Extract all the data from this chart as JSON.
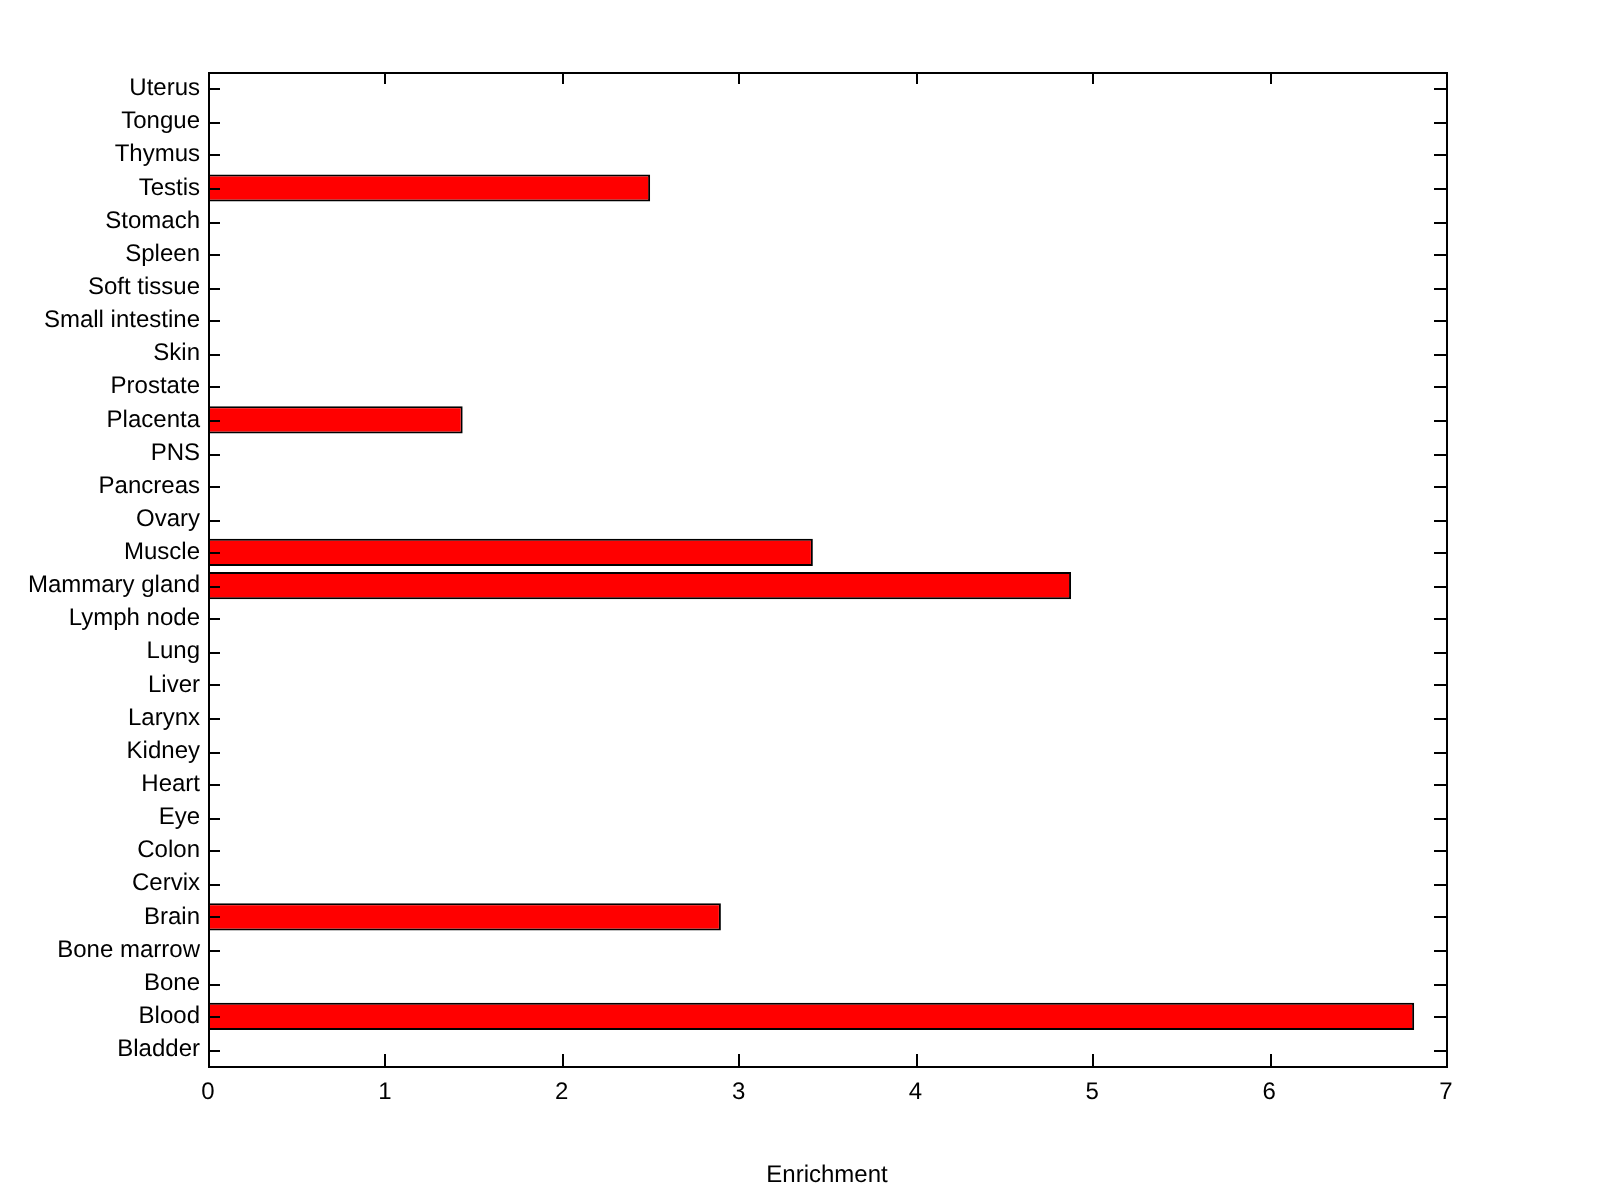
{
  "chart_data": {
    "type": "bar",
    "orientation": "horizontal",
    "xlabel": "Enrichment",
    "categories": [
      "Uterus",
      "Tongue",
      "Thymus",
      "Testis",
      "Stomach",
      "Spleen",
      "Soft tissue",
      "Small intestine",
      "Skin",
      "Prostate",
      "Placenta",
      "PNS",
      "Pancreas",
      "Ovary",
      "Muscle",
      "Mammary gland",
      "Lymph node",
      "Lung",
      "Liver",
      "Larynx",
      "Kidney",
      "Heart",
      "Eye",
      "Colon",
      "Cervix",
      "Brain",
      "Bone marrow",
      "Bone",
      "Blood",
      "Bladder"
    ],
    "values": [
      0,
      0,
      0,
      2.5,
      0,
      0,
      0,
      0,
      0,
      0,
      1.44,
      0,
      0,
      0,
      3.42,
      4.88,
      0,
      0,
      0,
      0,
      0,
      0,
      0,
      0,
      0,
      2.9,
      0,
      0,
      6.82,
      0
    ],
    "color": "#ff0000",
    "xlim": [
      0,
      7
    ],
    "xticks": [
      0,
      1,
      2,
      3,
      4,
      5,
      6,
      7
    ]
  }
}
